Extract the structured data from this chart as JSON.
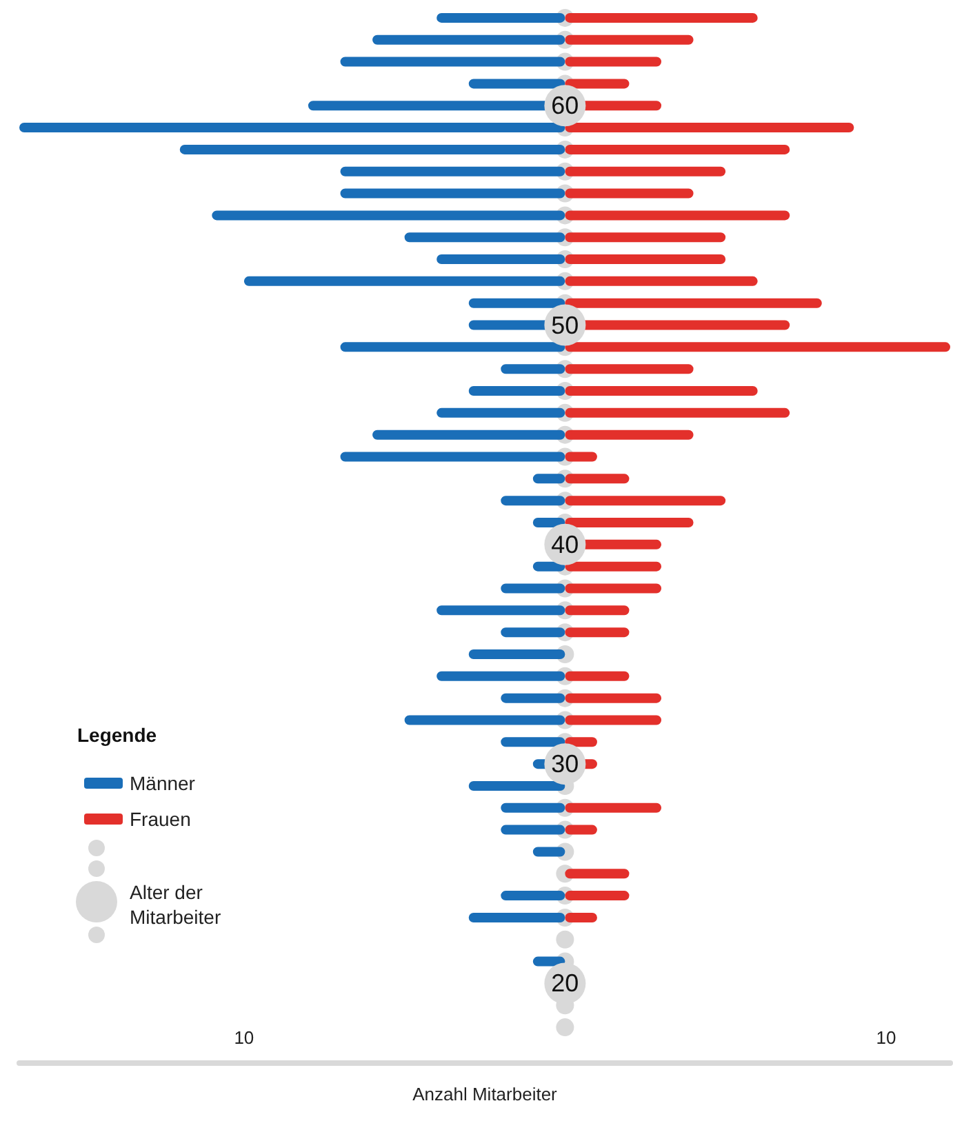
{
  "chart_data": {
    "type": "bar",
    "orientation": "horizontal",
    "stacked": true,
    "xlabel": "Anzahl Mitarbeiter",
    "ylabel": "Alter der Mitarbeiter",
    "legend_title": "Legende",
    "legend": "bottom left",
    "categories": [
      null,
      null,
      null,
      null,
      "60",
      null,
      null,
      null,
      null,
      null,
      null,
      null,
      null,
      null,
      "50",
      null,
      null,
      null,
      null,
      null,
      null,
      null,
      null,
      null,
      "40",
      null,
      null,
      null,
      null,
      null,
      null,
      null,
      null,
      null,
      "30",
      null,
      null,
      null,
      null,
      null,
      null,
      null,
      null,
      null,
      "20",
      null,
      null
    ],
    "xlim": [
      -17,
      12
    ],
    "xticks": [
      {
        "value": -10,
        "label": "10"
      },
      {
        "value": 10,
        "label": "10"
      }
    ],
    "grid": false,
    "series": [
      {
        "name": "Männer",
        "color": "#1a6eb8",
        "values": [
          -4,
          -6,
          -7,
          -3,
          -8,
          -17,
          -12,
          -7,
          -7,
          -11,
          -5,
          -4,
          -10,
          -3,
          -3,
          -7,
          -2,
          -3,
          -4,
          -6,
          -7,
          -1,
          -2,
          -1,
          0,
          -1,
          -2,
          -4,
          -2,
          -3,
          -4,
          -2,
          -5,
          -2,
          -1,
          -3,
          -2,
          -2,
          -1,
          0,
          -2,
          -3,
          0,
          -1,
          0,
          0,
          0
        ]
      },
      {
        "name": "Frauen",
        "color": "#e3302b",
        "values": [
          6,
          4,
          3,
          2,
          3,
          9,
          7,
          5,
          4,
          7,
          5,
          5,
          6,
          8,
          7,
          12,
          4,
          6,
          7,
          4,
          1,
          2,
          5,
          4,
          3,
          3,
          3,
          2,
          2,
          0,
          2,
          3,
          3,
          1,
          1,
          0,
          3,
          1,
          0,
          2,
          2,
          1,
          0,
          0,
          0,
          0,
          0
        ]
      }
    ]
  }
}
